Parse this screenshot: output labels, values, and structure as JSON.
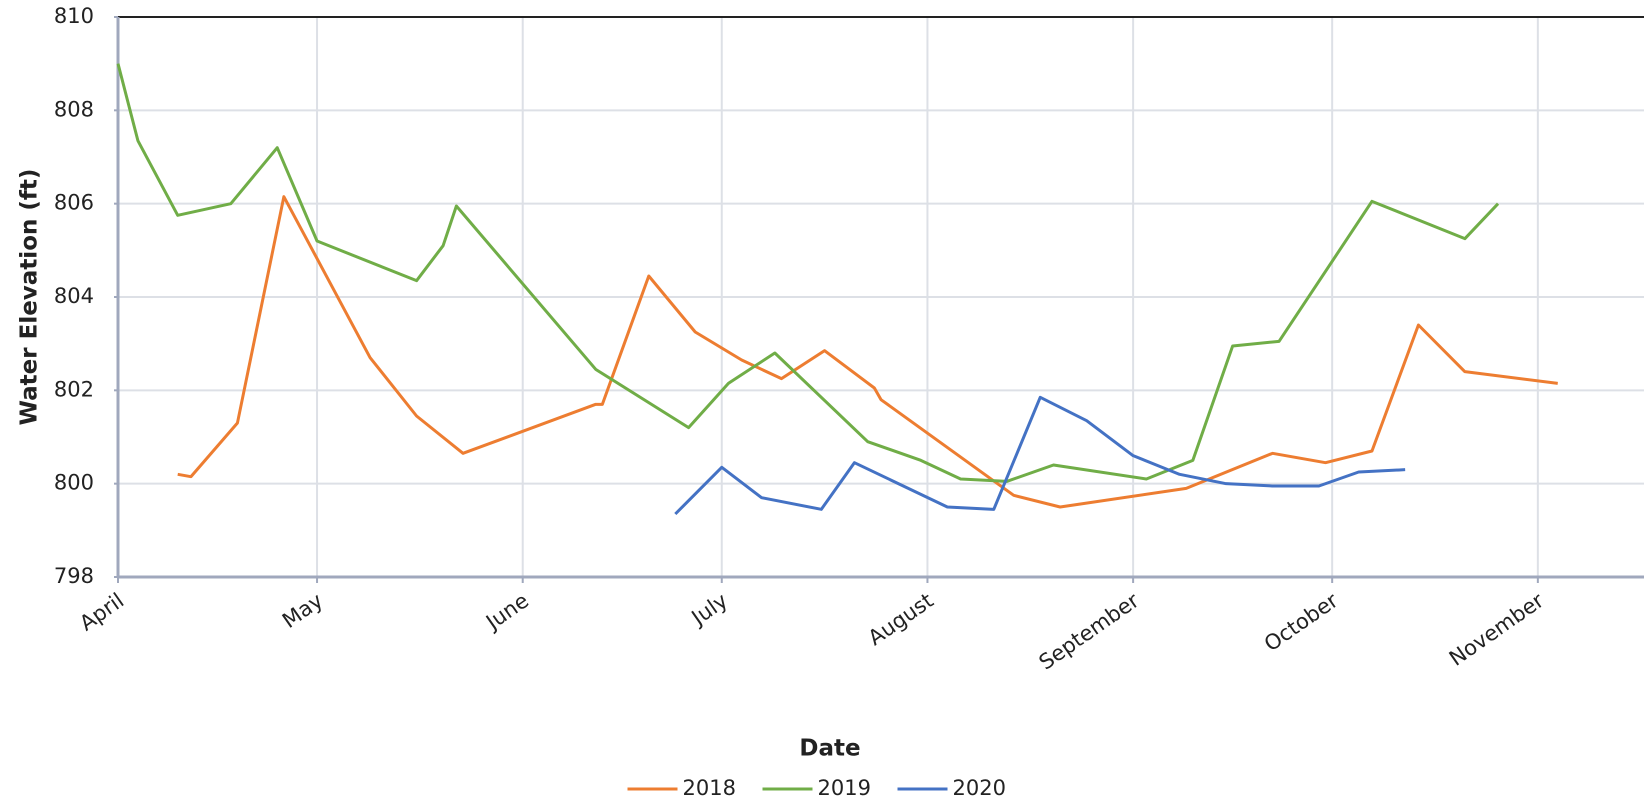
{
  "chart_data": {
    "type": "line",
    "x_label": "Date",
    "y_label": "Water Elevation (ft)",
    "xlim": [
      0,
      230
    ],
    "xticks": [
      {
        "value": 0,
        "label": "April"
      },
      {
        "value": 30,
        "label": "May"
      },
      {
        "value": 61,
        "label": "June"
      },
      {
        "value": 91,
        "label": "July"
      },
      {
        "value": 122,
        "label": "August"
      },
      {
        "value": 153,
        "label": "September"
      },
      {
        "value": 183,
        "label": "October"
      },
      {
        "value": 214,
        "label": "November"
      }
    ],
    "ylim": [
      798,
      810
    ],
    "yticks": [
      798,
      800,
      802,
      804,
      806,
      808,
      810
    ],
    "grid": true,
    "legend": "bottom",
    "series": [
      {
        "name": "2018",
        "color": "#ed7d31",
        "x": [
          9,
          11,
          18,
          25,
          38,
          45,
          52,
          72,
          73,
          80,
          87,
          94,
          100,
          106.5,
          114,
          115,
          135,
          142,
          161,
          174,
          182,
          189,
          196,
          203,
          217
        ],
        "values": [
          800.2,
          800.15,
          801.3,
          806.15,
          802.7,
          801.45,
          800.65,
          801.7,
          801.7,
          804.45,
          803.25,
          802.65,
          802.25,
          802.85,
          802.05,
          801.8,
          799.75,
          799.5,
          799.9,
          800.65,
          800.45,
          800.7,
          803.4,
          802.4,
          802.15
        ]
      },
      {
        "name": "2019",
        "color": "#70ad47",
        "x": [
          0,
          3,
          9,
          17,
          24,
          30,
          45,
          49,
          51,
          72,
          86,
          92,
          99,
          113,
          121,
          127,
          134,
          141,
          155,
          162,
          168,
          175,
          189,
          203,
          208
        ],
        "values": [
          809,
          807.35,
          805.75,
          806,
          807.2,
          805.2,
          804.35,
          805.1,
          805.95,
          802.45,
          801.2,
          802.15,
          802.8,
          800.9,
          800.5,
          800.1,
          800.05,
          800.4,
          800.1,
          800.5,
          802.95,
          803.05,
          806.05,
          805.25,
          806
        ]
      },
      {
        "name": "2020",
        "color": "#4472c4",
        "x": [
          84,
          91,
          97,
          106,
          111,
          125,
          132,
          139,
          146,
          153,
          160,
          167,
          174,
          181,
          187,
          194
        ],
        "values": [
          799.35,
          800.35,
          799.7,
          799.45,
          800.45,
          799.5,
          799.45,
          801.85,
          801.35,
          800.6,
          800.2,
          800,
          799.95,
          799.95,
          800.25,
          800.3
        ]
      }
    ]
  }
}
